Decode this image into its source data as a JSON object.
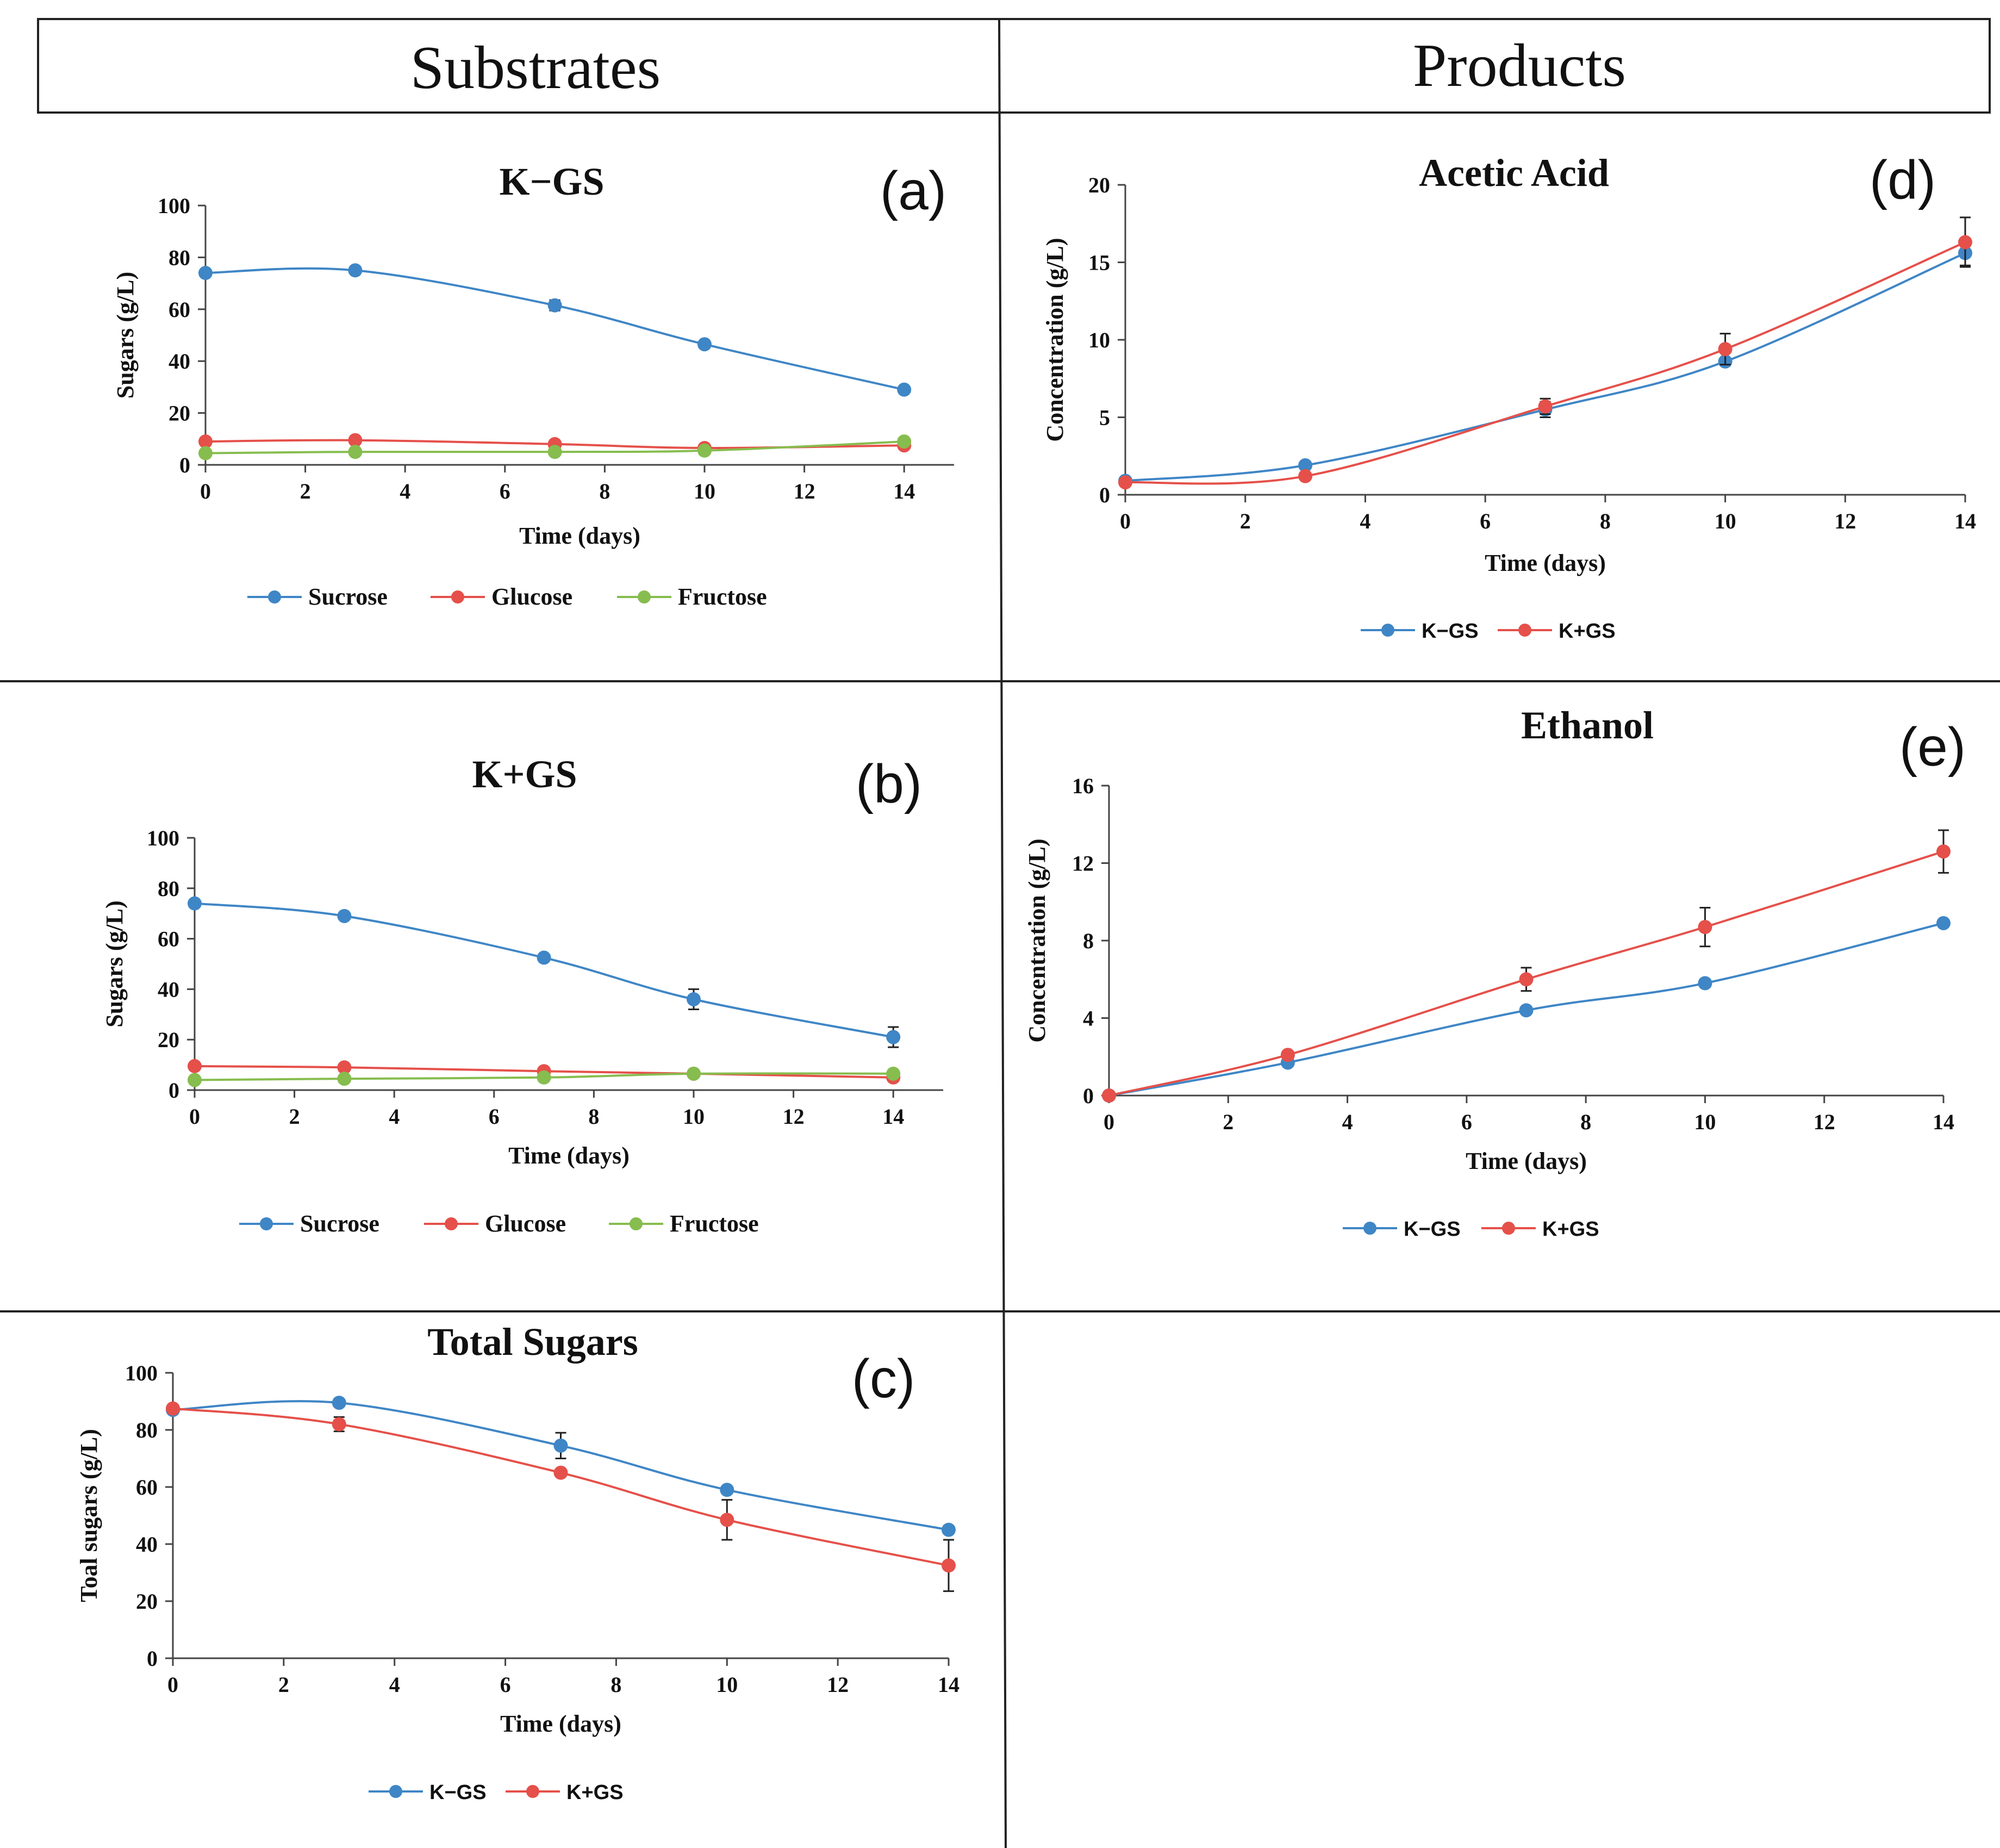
{
  "headers": {
    "left": "Substrates",
    "right": "Products"
  },
  "colors": {
    "blue": "#3f86c6",
    "red": "#e5504a",
    "green": "#86bd4e",
    "axis": "#444444",
    "line": "#222222"
  },
  "chart_data": [
    {
      "id": "a",
      "panel_label": "(a)",
      "type": "line",
      "title": "K−GS",
      "xlabel": "Time (days)",
      "ylabel": "Sugars (g/L)",
      "xlim": [
        0,
        15
      ],
      "ylim": [
        0,
        100
      ],
      "xticks": [
        0,
        2,
        4,
        6,
        8,
        10,
        12,
        14
      ],
      "yticks": [
        0,
        20,
        40,
        60,
        80,
        100
      ],
      "x": [
        0,
        3,
        7,
        10,
        14
      ],
      "series": [
        {
          "name": "Sucrose",
          "color": "#3f86c6",
          "values": [
            74,
            75,
            61.5,
            46.5,
            29
          ],
          "errors": [
            0,
            0,
            2,
            0,
            0
          ]
        },
        {
          "name": "Glucose",
          "color": "#e5504a",
          "values": [
            9,
            9.5,
            8,
            6.5,
            7.5
          ],
          "errors": [
            0,
            0,
            0,
            0,
            0
          ]
        },
        {
          "name": "Fructose",
          "color": "#86bd4e",
          "values": [
            4.5,
            5,
            5,
            5.5,
            9
          ],
          "errors": [
            0,
            0,
            0,
            0,
            0
          ]
        }
      ]
    },
    {
      "id": "b",
      "panel_label": "(b)",
      "type": "line",
      "title": "K+GS",
      "xlabel": "Time (days)",
      "ylabel": "Sugars (g/L)",
      "xlim": [
        0,
        15
      ],
      "ylim": [
        0,
        100
      ],
      "xticks": [
        0,
        2,
        4,
        6,
        8,
        10,
        12,
        14
      ],
      "yticks": [
        0,
        20,
        40,
        60,
        80,
        100
      ],
      "x": [
        0,
        3,
        7,
        10,
        14
      ],
      "series": [
        {
          "name": "Sucrose",
          "color": "#3f86c6",
          "values": [
            74,
            69,
            52.5,
            36,
            21
          ],
          "errors": [
            0,
            0,
            0,
            4,
            4
          ]
        },
        {
          "name": "Glucose",
          "color": "#e5504a",
          "values": [
            9.5,
            9,
            7.5,
            6.5,
            5
          ],
          "errors": [
            0,
            0,
            0,
            0,
            0
          ]
        },
        {
          "name": "Fructose",
          "color": "#86bd4e",
          "values": [
            4,
            4.5,
            5,
            6.5,
            6.5
          ],
          "errors": [
            0,
            0,
            0,
            0,
            0
          ]
        }
      ]
    },
    {
      "id": "c",
      "panel_label": "(c)",
      "type": "line",
      "title": "Total Sugars",
      "xlabel": "Time (days)",
      "ylabel": "Toal sugars (g/L)",
      "xlim": [
        0,
        14
      ],
      "ylim": [
        0,
        100
      ],
      "xticks": [
        0,
        2,
        4,
        6,
        8,
        10,
        12,
        14
      ],
      "yticks": [
        0,
        20,
        40,
        60,
        80,
        100
      ],
      "x": [
        0,
        3,
        7,
        10,
        14
      ],
      "series": [
        {
          "name": "K−GS",
          "color": "#3f86c6",
          "values": [
            87,
            89.5,
            74.5,
            59,
            45
          ],
          "errors": [
            0,
            0,
            4.5,
            0,
            0
          ]
        },
        {
          "name": "K+GS",
          "color": "#e5504a",
          "values": [
            87.5,
            82,
            65,
            48.5,
            32.5
          ],
          "errors": [
            0,
            2.5,
            0,
            7,
            9
          ]
        }
      ]
    },
    {
      "id": "d",
      "panel_label": "(d)",
      "type": "line",
      "title": "Acetic Acid",
      "xlabel": "Time (days)",
      "ylabel": "Concentration (g/L)",
      "xlim": [
        0,
        14
      ],
      "ylim": [
        0,
        20
      ],
      "xticks": [
        0,
        2,
        4,
        6,
        8,
        10,
        12,
        14
      ],
      "yticks": [
        0,
        5,
        10,
        15,
        20
      ],
      "x": [
        0,
        3,
        7,
        10,
        14
      ],
      "series": [
        {
          "name": "K−GS",
          "color": "#3f86c6",
          "values": [
            0.9,
            1.9,
            5.5,
            8.6,
            15.6
          ],
          "errors": [
            0,
            0,
            0.5,
            0,
            0.8
          ]
        },
        {
          "name": "K+GS",
          "color": "#e5504a",
          "values": [
            0.8,
            1.2,
            5.7,
            9.4,
            16.3
          ],
          "errors": [
            0,
            0,
            0.5,
            1.0,
            1.6
          ]
        }
      ]
    },
    {
      "id": "e",
      "panel_label": "(e)",
      "type": "line",
      "title": "Ethanol",
      "xlabel": "Time (days)",
      "ylabel": "Concentration (g/L)",
      "xlim": [
        0,
        14
      ],
      "ylim": [
        0,
        16
      ],
      "xticks": [
        0,
        2,
        4,
        6,
        8,
        10,
        12,
        14
      ],
      "yticks": [
        0,
        4,
        8,
        12,
        16
      ],
      "x": [
        0,
        3,
        7,
        10,
        14
      ],
      "series": [
        {
          "name": "K−GS",
          "color": "#3f86c6",
          "values": [
            0,
            1.7,
            4.4,
            5.8,
            8.9
          ],
          "errors": [
            0,
            0,
            0,
            0,
            0
          ]
        },
        {
          "name": "K+GS",
          "color": "#e5504a",
          "values": [
            0,
            2.1,
            6.0,
            8.7,
            12.6
          ],
          "errors": [
            0,
            0,
            0.6,
            1.0,
            1.1
          ]
        }
      ]
    }
  ]
}
